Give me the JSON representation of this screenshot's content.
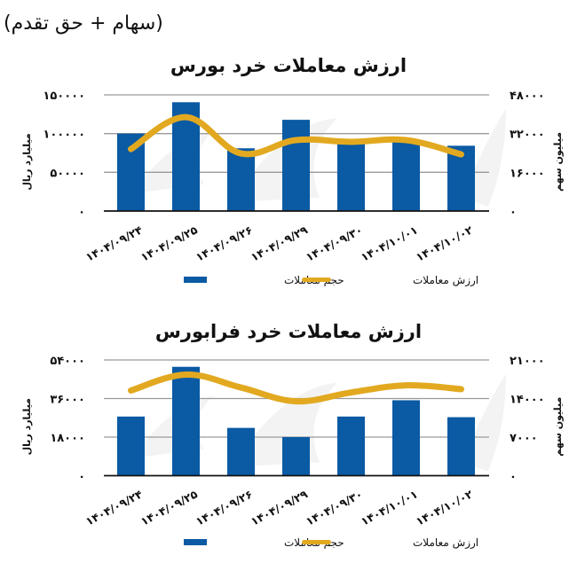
{
  "header": {
    "subtitle": "(سهام + حق تقدم)"
  },
  "colors": {
    "bar": "#0a5aa4",
    "line": "#e2a920",
    "grid": "#9a9a9a",
    "axis": "#111111"
  },
  "chart_data": [
    {
      "type": "bar+line",
      "title": "ارزش معاملات خرد بورس",
      "categories": [
        "۱۴۰۴/۰۹/۲۴",
        "۱۴۰۴/۰۹/۲۵",
        "۱۴۰۴/۰۹/۲۶",
        "۱۴۰۴/۰۹/۲۹",
        "۱۴۰۴/۰۹/۳۰",
        "۱۴۰۴/۱۰/۰۱",
        "۱۴۰۴/۱۰/۰۲"
      ],
      "series": [
        {
          "name": "حجم معاملات",
          "kind": "bar",
          "axis": "left",
          "values": [
            100000,
            140500,
            81000,
            117800,
            87000,
            89000,
            84300
          ]
        },
        {
          "name": "ارزش معاملات",
          "kind": "line",
          "axis": "right",
          "values": [
            25600,
            38800,
            23800,
            29300,
            28600,
            29300,
            23400
          ]
        }
      ],
      "left_axis": {
        "label": "میلیارد ریال",
        "ticks": [
          "۰",
          "۵۰۰۰۰",
          "۱۰۰۰۰۰",
          "۱۵۰۰۰۰"
        ],
        "tick_values": [
          0,
          50000,
          100000,
          150000
        ],
        "ylim": [
          0,
          150000
        ]
      },
      "right_axis": {
        "label": "میلیون سهم",
        "ticks": [
          "۰",
          "۱۶۰۰۰",
          "۳۲۰۰۰",
          "۴۸۰۰۰"
        ],
        "tick_values": [
          0,
          16000,
          32000,
          48000
        ],
        "ylim": [
          0,
          48000
        ]
      },
      "xlabel": "",
      "grid": true,
      "legend_position": "bottom"
    },
    {
      "type": "bar+line",
      "title": "ارزش معاملات خرد فرابورس",
      "categories": [
        "۱۴۰۴/۰۹/۲۴",
        "۱۴۰۴/۰۹/۲۵",
        "۱۴۰۴/۰۹/۲۶",
        "۱۴۰۴/۰۹/۲۹",
        "۱۴۰۴/۰۹/۳۰",
        "۱۴۰۴/۱۰/۰۱",
        "۱۴۰۴/۱۰/۰۲"
      ],
      "series": [
        {
          "name": "حجم معاملات",
          "kind": "bar",
          "axis": "left",
          "values": [
            27600,
            50800,
            22300,
            18000,
            27600,
            35200,
            27300
          ]
        },
        {
          "name": "ارزش معاملات",
          "kind": "line",
          "axis": "right",
          "values": [
            15450,
            18350,
            16000,
            13500,
            15100,
            16400,
            15700
          ]
        }
      ],
      "left_axis": {
        "label": "میلیارد ریال",
        "ticks": [
          "۰",
          "۱۸۰۰۰",
          "۳۶۰۰۰",
          "۵۴۰۰۰"
        ],
        "tick_values": [
          0,
          18000,
          36000,
          54000
        ],
        "ylim": [
          0,
          54000
        ]
      },
      "right_axis": {
        "label": "میلیون سهم",
        "ticks": [
          "۰",
          "۷۰۰۰",
          "۱۴۰۰۰",
          "۲۱۰۰۰"
        ],
        "tick_values": [
          0,
          7000,
          14000,
          21000
        ],
        "ylim": [
          0,
          21000
        ]
      },
      "xlabel": "",
      "grid": true,
      "legend_position": "bottom"
    }
  ]
}
